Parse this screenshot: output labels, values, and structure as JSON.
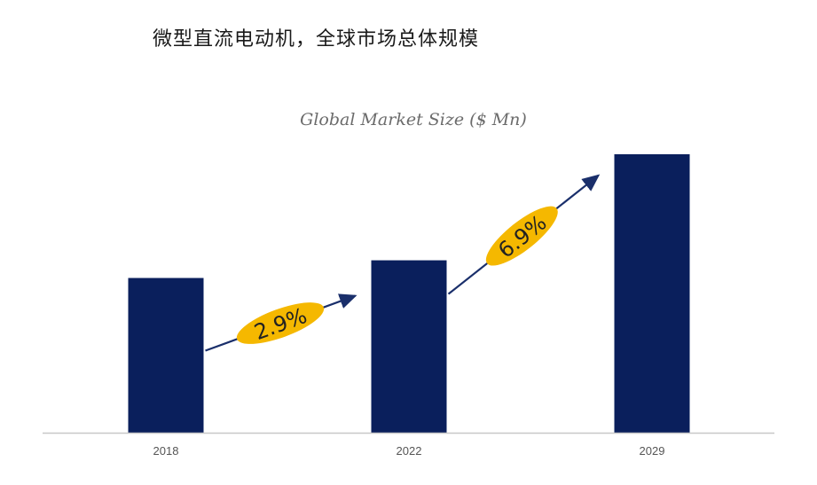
{
  "page": {
    "heading": "微型直流电动机，全球市场总体规模"
  },
  "chart_data": {
    "type": "bar",
    "title": "Global Market Size ($ Mn)",
    "categories": [
      "2018",
      "2022",
      "2029"
    ],
    "values": [
      175,
      195,
      315
    ],
    "ylim": [
      0,
      340
    ],
    "grid": false,
    "xlabel": "",
    "ylabel": "",
    "growth_annotations": [
      {
        "from": "2018",
        "to": "2022",
        "label": "2.9%"
      },
      {
        "from": "2022",
        "to": "2029",
        "label": "6.9%"
      }
    ],
    "colors": {
      "bar": "#0a1f5c",
      "badge": "#f5b800",
      "arrow": "#1a2f6b",
      "axis": "#c8c8c8"
    }
  }
}
